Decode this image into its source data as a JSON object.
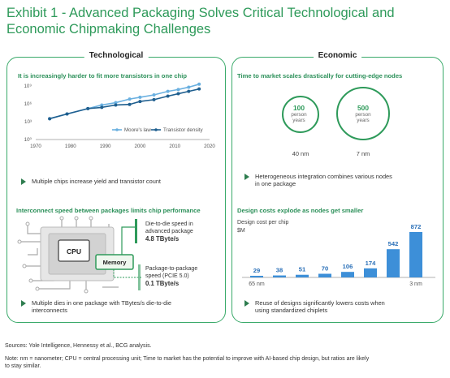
{
  "exhibit": {
    "title_line1": "Exhibit 1 - Advanced Packaging Solves Critical Technological and",
    "title_line2": "Economic Chipmaking Challenges"
  },
  "technological": {
    "label": "Technological",
    "chart_title": "It is increasingly harder to fit more transistors in one chip",
    "bullet1": "Multiple chips increase yield and transistor count",
    "interconnect_title": "Interconnect speed between packages limits chip performance",
    "cpu_label": "CPU",
    "memory_label": "Memory",
    "die_text1": "Die-to-die speed in",
    "die_text2": "advanced package",
    "die_speed": "4.8 TByte/s",
    "pkg_text1": "Package-to-package",
    "pkg_text2": "speed (PCIE 5.0)",
    "pkg_speed": "0.1 TByte/s",
    "bullet2_line1": "Multiple dies in one package with TBytes/s die-to-die",
    "bullet2_line2": "interconnects"
  },
  "economic": {
    "label": "Economic",
    "ttm_title": "Time to market scales drastically for cutting-edge nodes",
    "circle1_value": "100",
    "circle1_unit1": "person",
    "circle1_unit2": "years",
    "circle1_node": "40 nm",
    "circle2_value": "500",
    "circle2_unit1": "person",
    "circle2_unit2": "years",
    "circle2_node": "7 nm",
    "bullet1_line1": "Heterogeneous integration combines various nodes",
    "bullet1_line2": "in one package",
    "cost_title": "Design costs explode as nodes get smaller",
    "bullet2_line1": "Reuse of designs significantly lowers costs when",
    "bullet2_line2": "using standardized chiplets"
  },
  "footer": {
    "sources": "Sources: Yole Intelligence, Hennessy et al., BCG analysis.",
    "note_line1": "Note: nm = nanometer; CPU = central processing unit; Time to market has the potential to improve with AI-based chip design, but ratios are likely",
    "note_line2": "to stay similar."
  },
  "colors": {
    "accent_green": "#2e9a5a",
    "moores_line": "#6ab0e0",
    "density_line": "#1f5f8f",
    "bar_blue": "#3d8fd8"
  },
  "chart_data": [
    {
      "type": "line",
      "title": "It is increasingly harder to fit more transistors in one chip",
      "xlim": [
        1970,
        2020
      ],
      "x_ticks": [
        "1970",
        "1980",
        "1990",
        "2000",
        "2010",
        "2020"
      ],
      "y_scale": "log",
      "y_ticks": [
        "10⁰",
        "10³",
        "10⁶",
        "10⁹"
      ],
      "legend": "bottom-right",
      "series": [
        {
          "name": "Moore's law",
          "x": [
            1974,
            1979,
            1985,
            1989,
            1993,
            1997,
            2000,
            2004,
            2008,
            2011,
            2014,
            2017
          ],
          "y": [
            3.5,
            4.3,
            5.2,
            5.8,
            6.2,
            6.8,
            7.1,
            7.5,
            8.1,
            8.4,
            8.8,
            9.3
          ]
        },
        {
          "name": "Transistor density",
          "x": [
            1974,
            1979,
            1985,
            1989,
            1993,
            1997,
            2000,
            2004,
            2008,
            2011,
            2014,
            2017
          ],
          "y": [
            3.5,
            4.3,
            5.2,
            5.4,
            5.8,
            5.9,
            6.4,
            6.7,
            7.3,
            7.7,
            8.1,
            8.5
          ]
        }
      ]
    },
    {
      "type": "bar",
      "title": "Design costs explode as nodes get smaller",
      "ylabel": "Design cost per chip\n$M",
      "categories": [
        "65 nm",
        "",
        "",
        "",
        "",
        "",
        "",
        "3 nm"
      ],
      "values": [
        29,
        38,
        51,
        70,
        106,
        174,
        542,
        872
      ],
      "ylim": [
        0,
        872
      ]
    }
  ]
}
